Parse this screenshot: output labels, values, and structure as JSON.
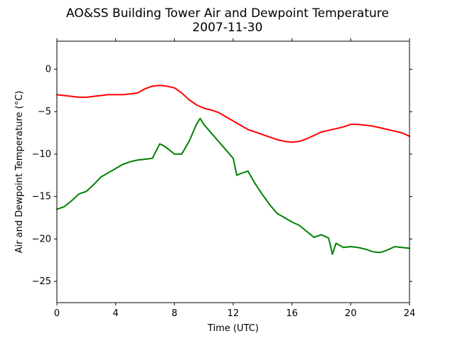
{
  "chart_data": {
    "type": "line",
    "title": "AO&SS Building Tower Air and Dewpoint Temperature",
    "subtitle": "2007-11-30",
    "xlabel": "Time (UTC)",
    "ylabel": "Air and Dewpoint Temperature (°C)",
    "xlim": [
      0,
      24
    ],
    "ylim": [
      -27.5,
      3.3
    ],
    "xticks": [
      0,
      4,
      8,
      12,
      16,
      20,
      24
    ],
    "yticks": [
      0,
      -5,
      -10,
      -15,
      -20,
      -25
    ],
    "xtick_labels": [
      "0",
      "4",
      "8",
      "12",
      "16",
      "20",
      "24"
    ],
    "ytick_labels": [
      "0",
      "−5",
      "−10",
      "−15",
      "−20",
      "−25"
    ],
    "grid": false,
    "legend": "none",
    "series": [
      {
        "color": "#ff0000",
        "x": [
          0,
          0.5,
          1,
          1.5,
          2,
          2.5,
          3,
          3.5,
          4,
          4.5,
          5,
          5.5,
          6,
          6.5,
          7,
          7.5,
          8,
          8.5,
          9,
          9.5,
          10,
          10.5,
          11,
          11.5,
          12,
          12.5,
          13,
          13.5,
          14,
          14.5,
          15,
          15.5,
          16,
          16.5,
          17,
          17.5,
          18,
          18.5,
          19,
          19.5,
          20,
          20.5,
          21,
          21.5,
          22,
          22.5,
          23,
          23.5,
          24
        ],
        "y": [
          -3.0,
          -3.1,
          -3.2,
          -3.3,
          -3.3,
          -3.2,
          -3.1,
          -3.0,
          -3.0,
          -3.0,
          -2.9,
          -2.8,
          -2.3,
          -2.0,
          -1.9,
          -2.0,
          -2.2,
          -2.8,
          -3.6,
          -4.2,
          -4.6,
          -4.8,
          -5.1,
          -5.6,
          -6.1,
          -6.6,
          -7.1,
          -7.4,
          -7.7,
          -8.0,
          -8.3,
          -8.5,
          -8.6,
          -8.5,
          -8.2,
          -7.8,
          -7.4,
          -7.2,
          -7.0,
          -6.8,
          -6.5,
          -6.5,
          -6.6,
          -6.7,
          -6.9,
          -7.1,
          -7.3,
          -7.5,
          -7.9
        ]
      },
      {
        "color": "#008000",
        "x": [
          0,
          0.5,
          1,
          1.5,
          2,
          2.5,
          3,
          3.5,
          4,
          4.5,
          5,
          5.5,
          6,
          6.5,
          7,
          7.25,
          7.5,
          8,
          8.5,
          9,
          9.5,
          9.75,
          10,
          10.5,
          11,
          11.5,
          12,
          12.25,
          12.5,
          13,
          13.5,
          14,
          14.5,
          15,
          15.5,
          16,
          16.5,
          17,
          17.5,
          18,
          18.5,
          18.75,
          19,
          19.5,
          20,
          20.5,
          21,
          21.5,
          22,
          22.5,
          23,
          23.5,
          24
        ],
        "y": [
          -16.5,
          -16.2,
          -15.5,
          -14.7,
          -14.4,
          -13.6,
          -12.7,
          -12.2,
          -11.7,
          -11.2,
          -10.9,
          -10.7,
          -10.6,
          -10.5,
          -8.8,
          -9.0,
          -9.3,
          -10.0,
          -10.0,
          -8.5,
          -6.5,
          -5.8,
          -6.5,
          -7.5,
          -8.5,
          -9.5,
          -10.5,
          -12.5,
          -12.3,
          -12.0,
          -13.5,
          -14.8,
          -16.0,
          -17.0,
          -17.5,
          -18.0,
          -18.4,
          -19.1,
          -19.8,
          -19.5,
          -19.9,
          -21.8,
          -20.5,
          -21.0,
          -20.9,
          -21.0,
          -21.2,
          -21.5,
          -21.6,
          -21.3,
          -20.9,
          -21.0,
          -21.1
        ]
      }
    ]
  }
}
